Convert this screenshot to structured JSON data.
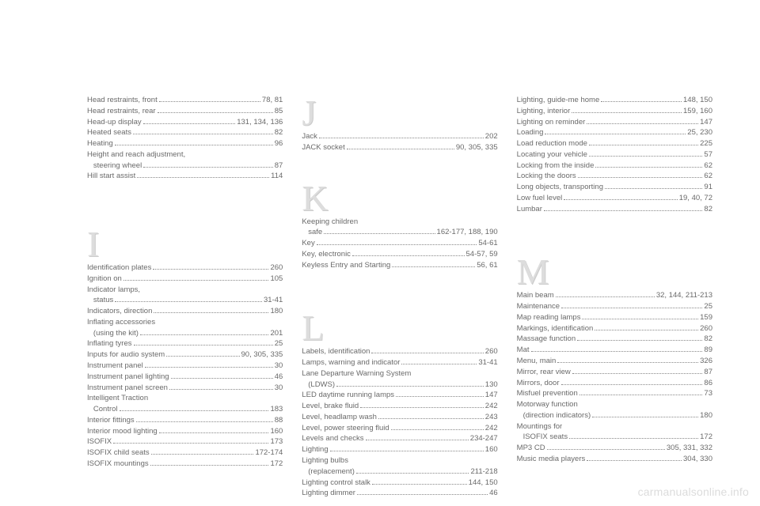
{
  "watermark": "carmanualsonline.info",
  "columns": [
    {
      "blocks": [
        {
          "letter": null,
          "entries": [
            {
              "label": "Head restraints, front",
              "pages": "78, 81"
            },
            {
              "label": "Head restraints, rear",
              "pages": "85"
            },
            {
              "label": "Head-up display",
              "pages": "131, 134, 136"
            },
            {
              "label": "Heated seats",
              "pages": "82"
            },
            {
              "label": "Heating",
              "pages": "96"
            },
            {
              "label": "Height and reach adjustment,",
              "pages": "",
              "nodots": true
            },
            {
              "label": "steering wheel",
              "pages": "87",
              "indent": true
            },
            {
              "label": "Hill start assist",
              "pages": "114"
            }
          ]
        },
        {
          "letter": "I",
          "letterClass": "first",
          "entries": [
            {
              "label": "Identification plates",
              "pages": "260"
            },
            {
              "label": "Ignition on",
              "pages": "105"
            },
            {
              "label": "Indicator lamps,",
              "pages": "",
              "nodots": true
            },
            {
              "label": "status",
              "pages": "31-41",
              "indent": true
            },
            {
              "label": "Indicators, direction",
              "pages": "180"
            },
            {
              "label": "Inflating accessories",
              "pages": "",
              "nodots": true
            },
            {
              "label": "(using the kit)",
              "pages": "201",
              "indent": true
            },
            {
              "label": "Inflating tyres",
              "pages": "25"
            },
            {
              "label": "Inputs for audio system",
              "pages": "90, 305, 335"
            },
            {
              "label": "Instrument panel",
              "pages": "30"
            },
            {
              "label": "Instrument panel lighting",
              "pages": "46"
            },
            {
              "label": "Instrument panel screen",
              "pages": "30"
            },
            {
              "label": "Intelligent Traction",
              "pages": "",
              "nodots": true
            },
            {
              "label": "Control",
              "pages": "183",
              "indent": true
            },
            {
              "label": "Interior fittings",
              "pages": "88"
            },
            {
              "label": "Interior mood lighting",
              "pages": "160"
            },
            {
              "label": "ISOFIX",
              "pages": "173"
            },
            {
              "label": "ISOFIX child seats",
              "pages": "172-174"
            },
            {
              "label": "ISOFIX mountings",
              "pages": "172"
            }
          ]
        }
      ]
    },
    {
      "blocks": [
        {
          "letter": "J",
          "entries": [
            {
              "label": "Jack",
              "pages": "202"
            },
            {
              "label": "JACK socket",
              "pages": "90, 305, 335"
            }
          ]
        },
        {
          "letter": "K",
          "spacerBefore": "sm",
          "entries": [
            {
              "label": "Keeping children",
              "pages": "",
              "nodots": true
            },
            {
              "label": "safe",
              "pages": "162-177, 188, 190",
              "indent": true
            },
            {
              "label": "Key",
              "pages": "54-61"
            },
            {
              "label": "Key, electronic",
              "pages": "54-57, 59"
            },
            {
              "label": "Keyless Entry and Starting",
              "pages": "56, 61"
            }
          ]
        },
        {
          "letter": "L",
          "spacerBefore": "md",
          "entries": [
            {
              "label": "Labels, identification",
              "pages": "260"
            },
            {
              "label": "Lamps, warning and indicator",
              "pages": "31-41"
            },
            {
              "label": "Lane Departure Warning System",
              "pages": "",
              "nodots": true
            },
            {
              "label": "(LDWS)",
              "pages": "130",
              "indent": true
            },
            {
              "label": "LED daytime running lamps",
              "pages": "147"
            },
            {
              "label": "Level, brake fluid",
              "pages": "242"
            },
            {
              "label": "Level, headlamp wash",
              "pages": "243"
            },
            {
              "label": "Level, power steering fluid",
              "pages": "242"
            },
            {
              "label": "Levels and checks",
              "pages": "234-247"
            },
            {
              "label": "Lighting",
              "pages": "160"
            },
            {
              "label": "Lighting bulbs",
              "pages": "",
              "nodots": true
            },
            {
              "label": "(replacement)",
              "pages": "211-218",
              "indent": true
            },
            {
              "label": "Lighting control stalk",
              "pages": "144, 150"
            },
            {
              "label": "Lighting dimmer",
              "pages": "46"
            }
          ]
        }
      ]
    },
    {
      "blocks": [
        {
          "letter": null,
          "entries": [
            {
              "label": "Lighting, guide-me home",
              "pages": "148, 150"
            },
            {
              "label": "Lighting, interior",
              "pages": "159, 160"
            },
            {
              "label": "Lighting on reminder",
              "pages": "147"
            },
            {
              "label": "Loading",
              "pages": "25, 230"
            },
            {
              "label": "Load reduction mode",
              "pages": "225"
            },
            {
              "label": "Locating your vehicle",
              "pages": "57"
            },
            {
              "label": "Locking from the inside",
              "pages": "62"
            },
            {
              "label": "Locking the doors",
              "pages": "62"
            },
            {
              "label": "Long objects, transporting",
              "pages": "91"
            },
            {
              "label": "Low fuel level",
              "pages": "19, 40, 72"
            },
            {
              "label": "Lumbar",
              "pages": "82"
            }
          ]
        },
        {
          "letter": "M",
          "spacerBefore": "md",
          "entries": [
            {
              "label": "Main beam",
              "pages": "32, 144, 211-213"
            },
            {
              "label": "Maintenance",
              "pages": "25"
            },
            {
              "label": "Map reading lamps",
              "pages": "159"
            },
            {
              "label": "Markings, identification",
              "pages": "260"
            },
            {
              "label": "Massage function",
              "pages": "82"
            },
            {
              "label": "Mat",
              "pages": "89"
            },
            {
              "label": "Menu, main",
              "pages": "326"
            },
            {
              "label": "Mirror, rear view",
              "pages": "87"
            },
            {
              "label": "Mirrors, door",
              "pages": "86"
            },
            {
              "label": "Misfuel prevention",
              "pages": "73"
            },
            {
              "label": "Motorway function",
              "pages": "",
              "nodots": true
            },
            {
              "label": "(direction indicators)",
              "pages": "180",
              "indent": true
            },
            {
              "label": "Mountings for",
              "pages": "",
              "nodots": true
            },
            {
              "label": "ISOFIX seats",
              "pages": "172",
              "indent": true
            },
            {
              "label": "MP3 CD",
              "pages": "305, 331, 332"
            },
            {
              "label": "Music media players",
              "pages": "304, 330"
            }
          ]
        }
      ]
    }
  ]
}
